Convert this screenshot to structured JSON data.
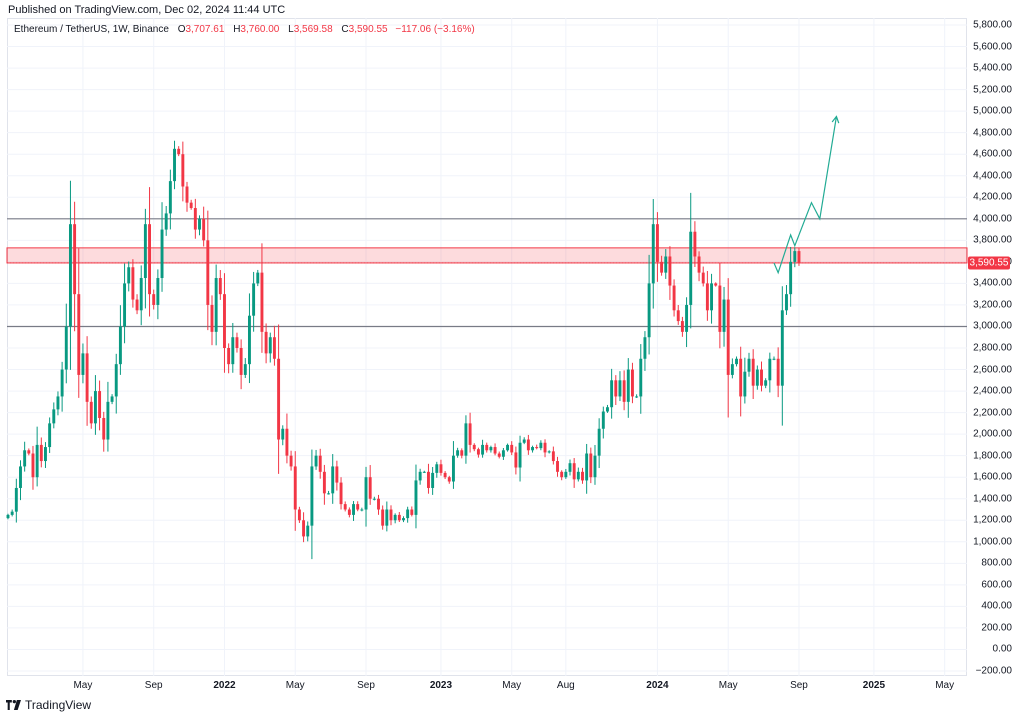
{
  "header": {
    "published": "Published on TradingView.com, Dec 02, 2024 11:44 UTC"
  },
  "legend": {
    "symbol": "Ethereum / TetherUS, 1W, Binance",
    "open_label": "O",
    "open": "3,707.61",
    "high_label": "H",
    "high": "3,760.00",
    "low_label": "L",
    "low": "3,569.58",
    "close_label": "C",
    "close": "3,590.55",
    "change": "−117.06 (−3.16%)"
  },
  "branding": {
    "name": "TradingView"
  },
  "colors": {
    "up": "#089981",
    "down": "#f23645",
    "zone": "#f23645",
    "lines": "#787b86",
    "projection": "#22ab94"
  },
  "chart_data": {
    "type": "candlestick",
    "title": "Ethereum / TetherUS, 1W, Binance",
    "ylim": [
      -200,
      5800
    ],
    "y_ticks": [
      5800,
      5600,
      5400,
      5200,
      5000,
      4800,
      4600,
      4400,
      4200,
      4000,
      3800,
      3600,
      3400,
      3200,
      3000,
      2800,
      2600,
      2400,
      2200,
      2000,
      1800,
      1600,
      1400,
      1200,
      1000,
      800,
      600,
      400,
      200,
      0,
      -200
    ],
    "y_tick_labels": [
      "5,800.00",
      "5,600.00",
      "5,400.00",
      "5,200.00",
      "5,000.00",
      "4,800.00",
      "4,600.00",
      "4,400.00",
      "4,200.00",
      "4,000.00",
      "3,800.00",
      "3,600.00",
      "3,400.00",
      "3,200.00",
      "3,000.00",
      "2,800.00",
      "2,600.00",
      "2,400.00",
      "2,200.00",
      "2,000.00",
      "1,800.00",
      "1,600.00",
      "1,400.00",
      "1,200.00",
      "1,000.00",
      "800.00",
      "600.00",
      "400.00",
      "200.00",
      "0.00",
      "−200.00"
    ],
    "x_ticks": [
      {
        "label": "May",
        "bold": false,
        "week": 18
      },
      {
        "label": "Sep",
        "bold": false,
        "week": 35
      },
      {
        "label": "2022",
        "bold": true,
        "week": 52
      },
      {
        "label": "May",
        "bold": false,
        "week": 69
      },
      {
        "label": "Sep",
        "bold": false,
        "week": 86
      },
      {
        "label": "2023",
        "bold": true,
        "week": 104
      },
      {
        "label": "May",
        "bold": false,
        "week": 121
      },
      {
        "label": "Aug",
        "bold": false,
        "week": 134
      },
      {
        "label": "2024",
        "bold": true,
        "week": 156
      },
      {
        "label": "May",
        "bold": false,
        "week": 173
      },
      {
        "label": "Sep",
        "bold": false,
        "week": 190
      },
      {
        "label": "2025",
        "bold": true,
        "week": 208
      },
      {
        "label": "May",
        "bold": false,
        "week": 225
      }
    ],
    "horizontal_lines": [
      4000,
      3000
    ],
    "resistance_zone": [
      3590,
      3730
    ],
    "last_price": 3590.55,
    "last_price_label": "3,590.55",
    "week_range": [
      0,
      227
    ],
    "closes": [
      1250,
      1280,
      1500,
      1700,
      1850,
      1820,
      1600,
      1900,
      1750,
      1880,
      2100,
      2230,
      2350,
      2600,
      3000,
      3950,
      3300,
      2550,
      2750,
      2300,
      2100,
      2400,
      2150,
      1950,
      2300,
      2350,
      2650,
      3000,
      3400,
      3550,
      3250,
      3150,
      3450,
      3950,
      3300,
      3200,
      3450,
      3900,
      4050,
      4350,
      4650,
      4600,
      4300,
      4150,
      4100,
      3900,
      4000,
      3800,
      3200,
      2950,
      3450,
      3300,
      2800,
      2650,
      2900,
      2800,
      2550,
      2650,
      3100,
      3400,
      3500,
      2950,
      2750,
      2900,
      2700,
      1950,
      2050,
      1800,
      1700,
      1300,
      1200,
      1050,
      1150,
      1700,
      1800,
      1650,
      1450,
      1450,
      1700,
      1550,
      1350,
      1300,
      1250,
      1350,
      1300,
      1300,
      1600,
      1400,
      1400,
      1300,
      1150,
      1300,
      1200,
      1250,
      1200,
      1220,
      1300,
      1250,
      1570,
      1650,
      1650,
      1500,
      1640,
      1720,
      1640,
      1600,
      1560,
      1800,
      1850,
      1800,
      2100,
      1900,
      1860,
      1810,
      1900,
      1850,
      1880,
      1820,
      1790,
      1850,
      1900,
      1830,
      1690,
      1920,
      1950,
      1850,
      1880,
      1870,
      1920,
      1830,
      1840,
      1750,
      1650,
      1600,
      1650,
      1730,
      1580,
      1650,
      1570,
      1820,
      1600,
      1800,
      2050,
      2210,
      2250,
      2500,
      2350,
      2500,
      2300,
      2600,
      2350,
      2350,
      2700,
      2900,
      3400,
      3950,
      3600,
      3500,
      3650,
      3380,
      3150,
      3050,
      2950,
      3200,
      3880,
      3650,
      3500,
      3400,
      3150,
      3400,
      3380,
      2950,
      3250,
      2550,
      2650,
      2700,
      2350,
      2580,
      2700,
      2450,
      2600,
      2450,
      2500,
      2700,
      2700,
      2450,
      3150,
      3300,
      3600,
      3700,
      3590
    ],
    "projection": [
      [
        3590,
        184
      ],
      [
        3500,
        185
      ],
      [
        3850,
        188
      ],
      [
        3750,
        189
      ],
      [
        4150,
        193
      ],
      [
        4000,
        195
      ],
      [
        4950,
        199
      ]
    ]
  }
}
